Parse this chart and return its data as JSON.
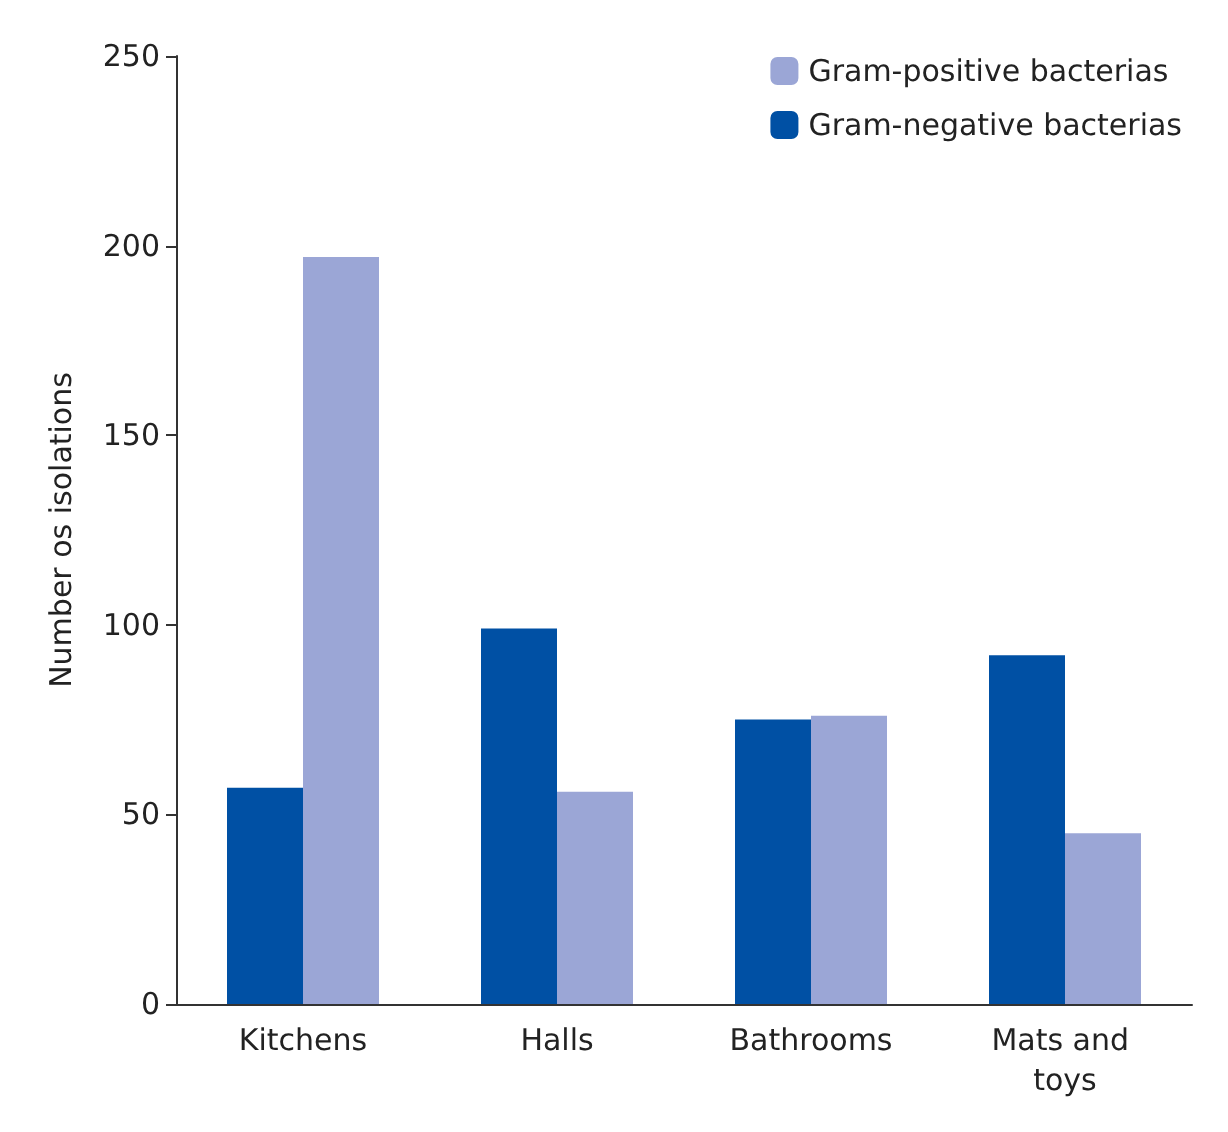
{
  "chart_data": {
    "type": "bar",
    "ylabel": "Number os isolations",
    "categories": [
      "Kitchens",
      "Halls",
      "Bathrooms",
      "Mats and toys"
    ],
    "series": [
      {
        "name": "Gram-negative bacterias",
        "color": "#0050a4",
        "values": [
          57,
          99,
          75,
          92
        ]
      },
      {
        "name": "Gram-positive bacterias",
        "color": "#9ba6d6",
        "values": [
          197,
          56,
          76,
          45
        ]
      }
    ],
    "ylim": [
      0,
      250
    ],
    "yticks": [
      0,
      50,
      100,
      150,
      200,
      250
    ],
    "grid": false,
    "legend": "top right"
  }
}
